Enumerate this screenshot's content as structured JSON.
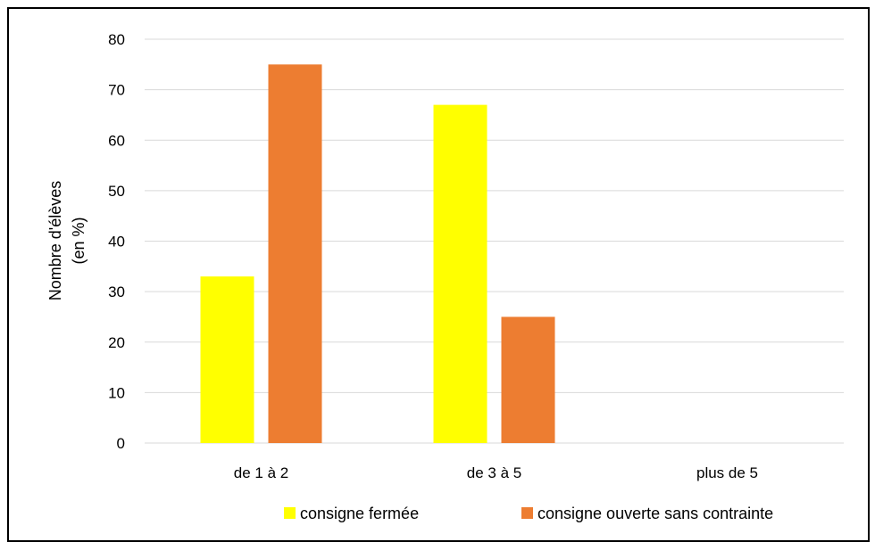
{
  "chart_data": {
    "type": "bar",
    "title": "",
    "xlabel": "",
    "ylabel_lines": [
      "Nombre d'élèves",
      "(en %)"
    ],
    "categories": [
      "de 1 à 2",
      "de 3 à 5",
      "plus de 5"
    ],
    "series": [
      {
        "name": "consigne fermée",
        "values": [
          33,
          67,
          0
        ],
        "color": "#FFFF00"
      },
      {
        "name": "consigne ouverte sans contrainte",
        "values": [
          75,
          25,
          0
        ],
        "color": "#ED7D31"
      }
    ],
    "ylim": [
      0,
      80
    ],
    "yticks": [
      0,
      10,
      20,
      30,
      40,
      50,
      60,
      70,
      80
    ],
    "grid": true,
    "legend": "bottom",
    "gridColor": "#D9D9D9"
  }
}
